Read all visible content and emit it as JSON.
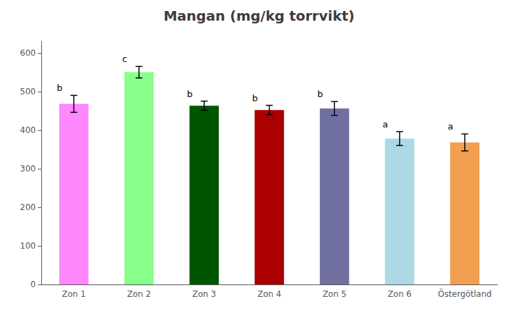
{
  "chart_data": {
    "type": "bar",
    "title": "Mangan (mg/kg torrvikt)",
    "categories": [
      "Zon 1",
      "Zon 2",
      "Zon 3",
      "Zon 4",
      "Zon 5",
      "Zon 6",
      "Östergötland"
    ],
    "values": [
      468,
      550,
      463,
      452,
      456,
      378,
      368
    ],
    "errors": [
      22,
      15,
      12,
      12,
      18,
      18,
      22
    ],
    "colors": [
      "#FF88FF",
      "#88FF88",
      "#005500",
      "#AA0000",
      "#7070A0",
      "#ADD8E6",
      "#F0A050"
    ],
    "annotations": [
      "b",
      "c",
      "b",
      "b",
      "b",
      "a",
      "a"
    ],
    "ylim": [
      0,
      630
    ],
    "yticks": [
      0,
      100,
      200,
      300,
      400,
      500,
      600
    ],
    "grid": false
  }
}
